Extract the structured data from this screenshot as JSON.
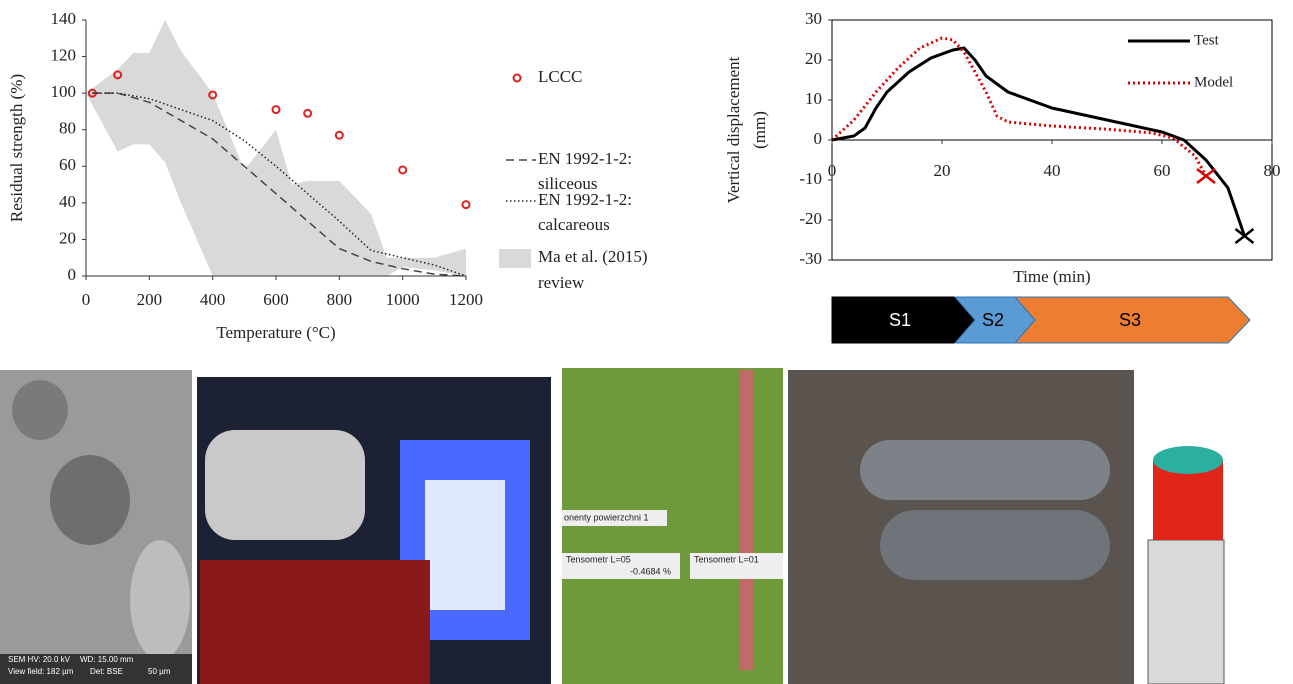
{
  "chart_data": [
    {
      "type": "line",
      "xlabel": "Temperature (°C)",
      "ylabel": "Residual strength (%)",
      "xlim": [
        0,
        1200
      ],
      "xticks": [
        0,
        200,
        400,
        600,
        800,
        1000,
        1200
      ],
      "ylim": [
        0,
        140
      ],
      "yticks": [
        0,
        20,
        40,
        60,
        80,
        100,
        120,
        140
      ],
      "series": [
        {
          "name": "Ma et al. (2015) review",
          "type": "area",
          "color": "#d9d9d9",
          "x": [
            0,
            100,
            150,
            200,
            250,
            300,
            400,
            500,
            600,
            650,
            700,
            800,
            900,
            950,
            1000,
            1100,
            1200
          ],
          "upper": [
            100,
            113,
            122,
            122,
            140,
            123,
            100,
            58,
            80,
            50,
            52,
            52,
            34,
            10,
            10,
            10,
            15
          ],
          "lower": [
            100,
            68,
            72,
            72,
            62,
            40,
            0,
            0,
            0,
            0,
            0,
            0,
            0,
            0,
            5,
            3,
            0
          ]
        },
        {
          "name": "LCCC",
          "type": "scatter",
          "color": "#e02020",
          "x": [
            20,
            100,
            400,
            600,
            700,
            800,
            1000,
            1200
          ],
          "values": [
            100,
            110,
            99,
            91,
            89,
            77,
            58,
            39
          ]
        },
        {
          "name": "EN 1992-1-2: siliceous",
          "type": "line",
          "dash": "8 5",
          "color": "#444",
          "x": [
            20,
            100,
            200,
            300,
            400,
            500,
            600,
            700,
            800,
            900,
            1000,
            1100,
            1200
          ],
          "values": [
            100,
            100,
            95,
            85,
            75,
            60,
            45,
            30,
            15,
            8,
            4,
            1,
            0
          ]
        },
        {
          "name": "EN 1992-1-2: calcareous",
          "type": "line",
          "dash": "1.5 2.5",
          "color": "#222",
          "x": [
            20,
            100,
            200,
            300,
            400,
            500,
            600,
            700,
            800,
            900,
            1000,
            1100,
            1200
          ],
          "values": [
            100,
            100,
            97,
            91,
            85,
            74,
            60,
            45,
            30,
            14,
            10,
            6,
            0
          ]
        }
      ]
    },
    {
      "type": "line",
      "xlabel": "Time (min)",
      "ylabel": "Vertical displacement (mm)",
      "xlim": [
        0,
        80
      ],
      "xticks": [
        0,
        20,
        40,
        60,
        80
      ],
      "ylim": [
        -30,
        30
      ],
      "yticks": [
        -30,
        -20,
        -10,
        0,
        10,
        20,
        30
      ],
      "series": [
        {
          "name": "Test",
          "type": "line",
          "color": "#000",
          "width": 3,
          "x": [
            0,
            4,
            6,
            8,
            10,
            14,
            18,
            22,
            24,
            26,
            28,
            32,
            40,
            50,
            60,
            64,
            68,
            72,
            75
          ],
          "values": [
            0,
            1,
            3,
            8,
            12,
            17,
            20.5,
            22.5,
            23,
            20,
            16,
            12,
            8,
            5,
            2,
            0,
            -5,
            -12,
            -24
          ]
        },
        {
          "name": "Model",
          "type": "line",
          "color": "#d00",
          "width": 3,
          "dash": "2 3",
          "x": [
            0,
            4,
            8,
            12,
            16,
            20,
            22,
            24,
            28,
            30,
            32,
            40,
            50,
            58,
            62,
            66,
            68
          ],
          "values": [
            0,
            5,
            12,
            18,
            23,
            25.5,
            25,
            22,
            12,
            6,
            4.5,
            3.5,
            2.7,
            1.8,
            0.5,
            -4,
            -9
          ]
        }
      ],
      "stages": [
        {
          "label": "S1",
          "color": "#000000"
        },
        {
          "label": "S2",
          "color": "#5b9bd5"
        },
        {
          "label": "S3",
          "color": "#ed7d31"
        }
      ]
    }
  ],
  "photos": {
    "sem": [
      "SEM HV: 20.0 kV",
      "WD: 15.00 mm",
      "View field: 182 µm",
      "Det: BSE",
      "50 µm"
    ],
    "dic": [
      "onenty powierzchni 1",
      "Tensometr L=05",
      "-0.4684 %",
      "Tensometr L=01"
    ]
  }
}
